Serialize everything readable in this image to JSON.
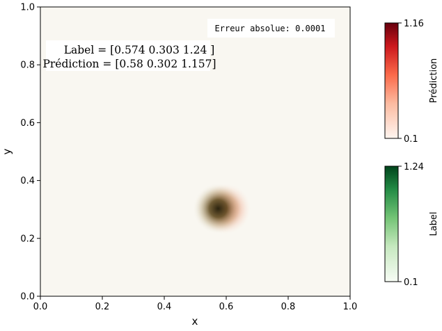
{
  "chart_data": {
    "type": "heatmap",
    "xlabel": "x",
    "ylabel": "y",
    "xlim": [
      0.0,
      1.0
    ],
    "ylim": [
      0.0,
      1.0
    ],
    "x_ticks": [
      "0.0",
      "0.2",
      "0.4",
      "0.6",
      "0.8",
      "1.0"
    ],
    "y_ticks": [
      "0.0",
      "0.2",
      "0.4",
      "0.6",
      "0.8",
      "1.0"
    ],
    "grid": false,
    "label_source": {
      "x": 0.574,
      "y": 0.303,
      "amplitude": 1.24
    },
    "prediction_source": {
      "x": 0.58,
      "y": 0.302,
      "amplitude": 1.157
    },
    "annotations": {
      "label_text": "Label = [0.574 0.303 1.24 ]",
      "prediction_text": "Prédiction = [0.58 0.302 1.157]",
      "error_text": "Erreur absolue: 0.0001"
    },
    "colorbars": [
      {
        "name": "Prédiction",
        "min_label": "0.1",
        "max_label": "1.16",
        "colormap": "Reds"
      },
      {
        "name": "Label",
        "min_label": "0.1",
        "max_label": "1.24",
        "colormap": "Greens"
      }
    ],
    "colors": {
      "background": "#f9f7f1",
      "reds_max": "#67000d",
      "greens_max": "#00441b"
    }
  }
}
